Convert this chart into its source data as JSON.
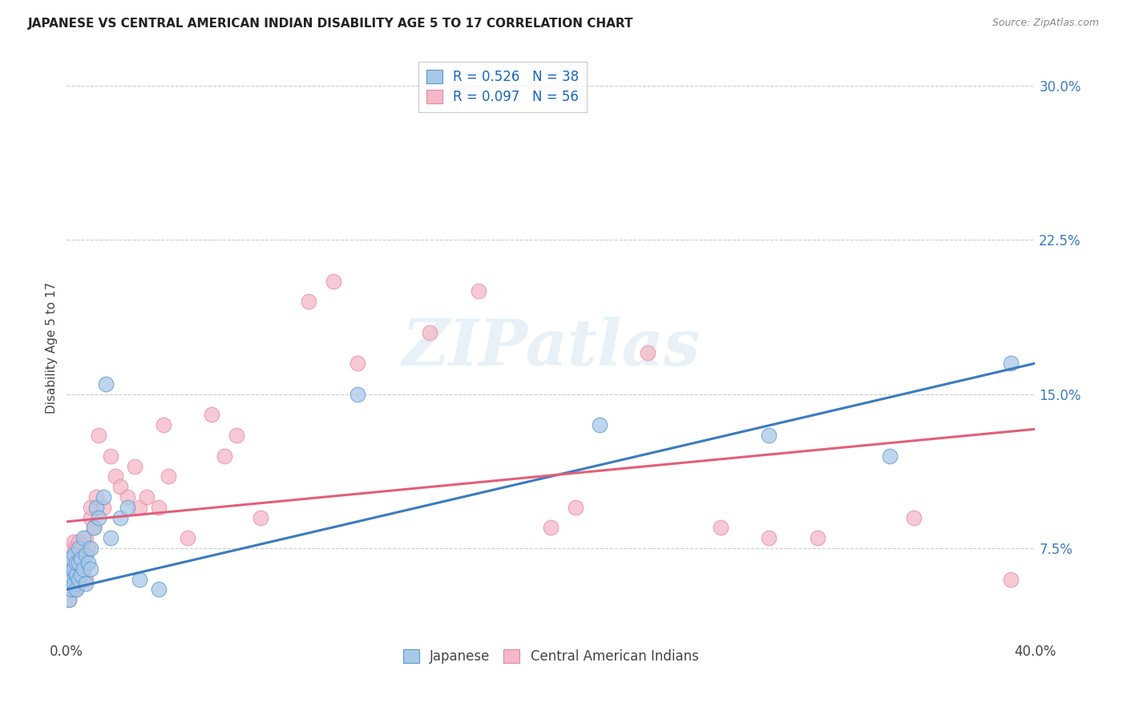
{
  "title": "JAPANESE VS CENTRAL AMERICAN INDIAN DISABILITY AGE 5 TO 17 CORRELATION CHART",
  "source": "Source: ZipAtlas.com",
  "ylabel": "Disability Age 5 to 17",
  "watermark": "ZIPatlas",
  "legend_r1": "R = 0.526",
  "legend_n1": "N = 38",
  "legend_r2": "R = 0.097",
  "legend_n2": "N = 56",
  "blue_fill": "#a8c8e8",
  "pink_fill": "#f4b8c8",
  "blue_line": "#3a7bbf",
  "pink_line": "#e0607a",
  "blue_edge": "#5898d0",
  "pink_edge": "#e888a0",
  "japanese_x": [
    0.001,
    0.001,
    0.002,
    0.002,
    0.002,
    0.003,
    0.003,
    0.003,
    0.004,
    0.004,
    0.004,
    0.005,
    0.005,
    0.005,
    0.006,
    0.006,
    0.007,
    0.007,
    0.008,
    0.008,
    0.009,
    0.01,
    0.01,
    0.011,
    0.012,
    0.013,
    0.015,
    0.016,
    0.018,
    0.022,
    0.025,
    0.03,
    0.038,
    0.12,
    0.22,
    0.29,
    0.34,
    0.39
  ],
  "japanese_y": [
    0.05,
    0.06,
    0.055,
    0.065,
    0.07,
    0.058,
    0.065,
    0.072,
    0.055,
    0.062,
    0.068,
    0.06,
    0.068,
    0.075,
    0.062,
    0.07,
    0.065,
    0.08,
    0.058,
    0.072,
    0.068,
    0.065,
    0.075,
    0.085,
    0.095,
    0.09,
    0.1,
    0.155,
    0.08,
    0.09,
    0.095,
    0.06,
    0.055,
    0.15,
    0.135,
    0.13,
    0.12,
    0.165
  ],
  "pink_x": [
    0.001,
    0.001,
    0.001,
    0.002,
    0.002,
    0.002,
    0.003,
    0.003,
    0.003,
    0.004,
    0.004,
    0.004,
    0.005,
    0.005,
    0.005,
    0.006,
    0.006,
    0.007,
    0.007,
    0.008,
    0.008,
    0.009,
    0.01,
    0.01,
    0.011,
    0.012,
    0.013,
    0.015,
    0.018,
    0.02,
    0.022,
    0.025,
    0.028,
    0.03,
    0.033,
    0.038,
    0.04,
    0.042,
    0.05,
    0.06,
    0.065,
    0.07,
    0.08,
    0.1,
    0.11,
    0.12,
    0.15,
    0.17,
    0.2,
    0.21,
    0.24,
    0.27,
    0.29,
    0.31,
    0.35,
    0.39
  ],
  "pink_y": [
    0.05,
    0.062,
    0.07,
    0.055,
    0.065,
    0.075,
    0.06,
    0.068,
    0.078,
    0.055,
    0.065,
    0.075,
    0.058,
    0.068,
    0.078,
    0.065,
    0.075,
    0.065,
    0.072,
    0.06,
    0.08,
    0.075,
    0.09,
    0.095,
    0.085,
    0.1,
    0.13,
    0.095,
    0.12,
    0.11,
    0.105,
    0.1,
    0.115,
    0.095,
    0.1,
    0.095,
    0.135,
    0.11,
    0.08,
    0.14,
    0.12,
    0.13,
    0.09,
    0.195,
    0.205,
    0.165,
    0.18,
    0.2,
    0.085,
    0.095,
    0.17,
    0.085,
    0.08,
    0.08,
    0.09,
    0.06
  ],
  "xlim": [
    0.0,
    0.4
  ],
  "ylim": [
    0.03,
    0.315
  ],
  "ytick_vals": [
    0.075,
    0.15,
    0.225,
    0.3
  ],
  "ytick_labels": [
    "7.5%",
    "15.0%",
    "22.5%",
    "30.0%"
  ],
  "figsize": [
    14.06,
    8.92
  ],
  "dpi": 100
}
